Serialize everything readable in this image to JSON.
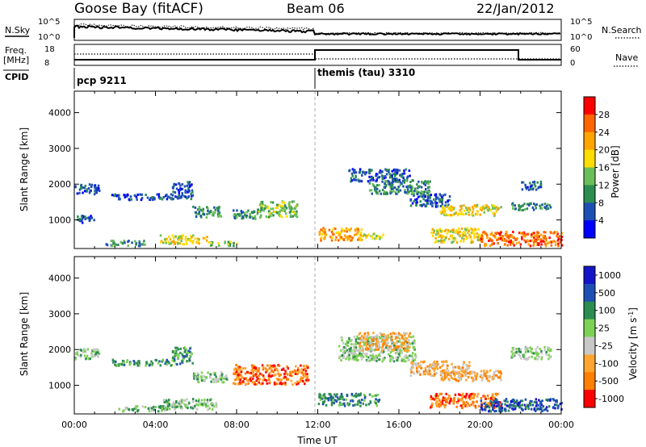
{
  "header": {
    "radar": "Goose Bay (fitACF)",
    "beam": "Beam 06",
    "date": "22/Jan/2012"
  },
  "params": {
    "nsky_label": "N.Sky",
    "nsearch_label": "N.Search",
    "freq_label_1": "Freq.",
    "freq_label_2": "[MHz]",
    "nave_label": "Nave",
    "cpid_label": "CPID",
    "noise_ticks_left": [
      "10^5",
      "10^0"
    ],
    "noise_ticks_right": [
      "10^5",
      "10^0"
    ],
    "freq_ticks": [
      "18",
      "8"
    ],
    "nave_ticks": [
      "60",
      "0"
    ]
  },
  "cpid": [
    {
      "name": "pcp 9211",
      "start_hour": 0
    },
    {
      "name": "themis (tau) 3310",
      "start_hour": 12
    }
  ],
  "colors": {
    "power": [
      "#0000ff",
      "#1e50b4",
      "#2d8c50",
      "#6bbf5a",
      "#ffdd00",
      "#ffa500",
      "#ff6600",
      "#ff0000"
    ],
    "velocity": [
      "#1414c8",
      "#1e50b4",
      "#2d8c50",
      "#7dd255",
      "#c8c8c8",
      "#ffa530",
      "#ff7f00",
      "#ff0000"
    ]
  },
  "chart_data": [
    {
      "type": "heatmap",
      "name": "power",
      "ylabel": "Slant Range [km]",
      "xlabel": "",
      "ylim": [
        200,
        4600
      ],
      "xlim_hours": [
        0,
        24
      ],
      "y_ticks": [
        "1000",
        "2000",
        "3000",
        "4000"
      ],
      "colorbar_label": "Power [dB]",
      "colorbar_ticks": [
        "4",
        "8",
        "12",
        "16",
        "20",
        "24",
        "28"
      ],
      "regions": [
        {
          "x": [
            0.0,
            1.2
          ],
          "y": [
            1750,
            2050
          ],
          "value": 8
        },
        {
          "x": [
            0.0,
            1.0
          ],
          "y": [
            950,
            1150
          ],
          "value": 8
        },
        {
          "x": [
            1.8,
            4.8
          ],
          "y": [
            1580,
            1750
          ],
          "value": 8
        },
        {
          "x": [
            4.8,
            5.8
          ],
          "y": [
            1600,
            2100
          ],
          "value": 8
        },
        {
          "x": [
            5.8,
            7.2
          ],
          "y": [
            1100,
            1400
          ],
          "value": 12
        },
        {
          "x": [
            7.8,
            9.2
          ],
          "y": [
            1050,
            1300
          ],
          "value": 12
        },
        {
          "x": [
            9.0,
            11.0
          ],
          "y": [
            1100,
            1550
          ],
          "value": 16
        },
        {
          "x": [
            1.5,
            3.5
          ],
          "y": [
            300,
            450
          ],
          "value": 12
        },
        {
          "x": [
            4.2,
            6.5
          ],
          "y": [
            350,
            600
          ],
          "value": 20
        },
        {
          "x": [
            6.5,
            8.0
          ],
          "y": [
            300,
            420
          ],
          "value": 16
        },
        {
          "x": [
            12.0,
            14.2
          ],
          "y": [
            450,
            800
          ],
          "value": 24
        },
        {
          "x": [
            14.2,
            15.2
          ],
          "y": [
            500,
            650
          ],
          "value": 20
        },
        {
          "x": [
            13.5,
            16.5
          ],
          "y": [
            2100,
            2450
          ],
          "value": 8
        },
        {
          "x": [
            14.5,
            17.5
          ],
          "y": [
            1750,
            2150
          ],
          "value": 12
        },
        {
          "x": [
            16.5,
            18.5
          ],
          "y": [
            1400,
            1750
          ],
          "value": 8
        },
        {
          "x": [
            18.0,
            21.0
          ],
          "y": [
            1150,
            1450
          ],
          "value": 20
        },
        {
          "x": [
            17.5,
            20.0
          ],
          "y": [
            400,
            800
          ],
          "value": 20
        },
        {
          "x": [
            20.0,
            24.0
          ],
          "y": [
            300,
            700
          ],
          "value": 28
        },
        {
          "x": [
            21.5,
            23.5
          ],
          "y": [
            1300,
            1500
          ],
          "value": 12
        },
        {
          "x": [
            22.0,
            23.0
          ],
          "y": [
            1850,
            2100
          ],
          "value": 8
        }
      ]
    },
    {
      "type": "heatmap",
      "name": "velocity",
      "ylabel": "Slant Range [km]",
      "xlabel": "Time UT",
      "ylim": [
        200,
        4600
      ],
      "xlim_hours": [
        0,
        24
      ],
      "x_ticks": [
        "00:00",
        "04:00",
        "08:00",
        "12:00",
        "16:00",
        "20:00",
        "00:00"
      ],
      "y_ticks": [
        "1000",
        "2000",
        "3000",
        "4000"
      ],
      "colorbar_label": "Velocity [m s^-1]",
      "colorbar_ticks": [
        "1000",
        "500",
        "100",
        "25",
        "-25",
        "-100",
        "-500",
        "-1000"
      ],
      "regions": [
        {
          "x": [
            0.0,
            1.2
          ],
          "y": [
            1750,
            2050
          ],
          "value": 25
        },
        {
          "x": [
            1.8,
            4.8
          ],
          "y": [
            1580,
            1750
          ],
          "value": 100
        },
        {
          "x": [
            4.8,
            5.8
          ],
          "y": [
            1600,
            2100
          ],
          "value": 100
        },
        {
          "x": [
            5.8,
            7.5
          ],
          "y": [
            1100,
            1400
          ],
          "value": 25
        },
        {
          "x": [
            7.8,
            11.5
          ],
          "y": [
            1050,
            1600
          ],
          "value": -500
        },
        {
          "x": [
            2.0,
            4.5
          ],
          "y": [
            300,
            450
          ],
          "value": 25
        },
        {
          "x": [
            4.2,
            7.0
          ],
          "y": [
            350,
            650
          ],
          "value": 25
        },
        {
          "x": [
            12.0,
            15.0
          ],
          "y": [
            450,
            800
          ],
          "value": 100
        },
        {
          "x": [
            13.0,
            16.8
          ],
          "y": [
            1700,
            2400
          ],
          "value": 25
        },
        {
          "x": [
            14.0,
            16.5
          ],
          "y": [
            2000,
            2500
          ],
          "value": -100
        },
        {
          "x": [
            16.5,
            19.5
          ],
          "y": [
            1300,
            1700
          ],
          "value": -100
        },
        {
          "x": [
            18.0,
            21.0
          ],
          "y": [
            1150,
            1450
          ],
          "value": -100
        },
        {
          "x": [
            17.5,
            21.0
          ],
          "y": [
            400,
            800
          ],
          "value": -500
        },
        {
          "x": [
            20.0,
            24.0
          ],
          "y": [
            300,
            650
          ],
          "value": 500
        },
        {
          "x": [
            21.5,
            23.5
          ],
          "y": [
            1750,
            2100
          ],
          "value": 25
        }
      ]
    }
  ]
}
